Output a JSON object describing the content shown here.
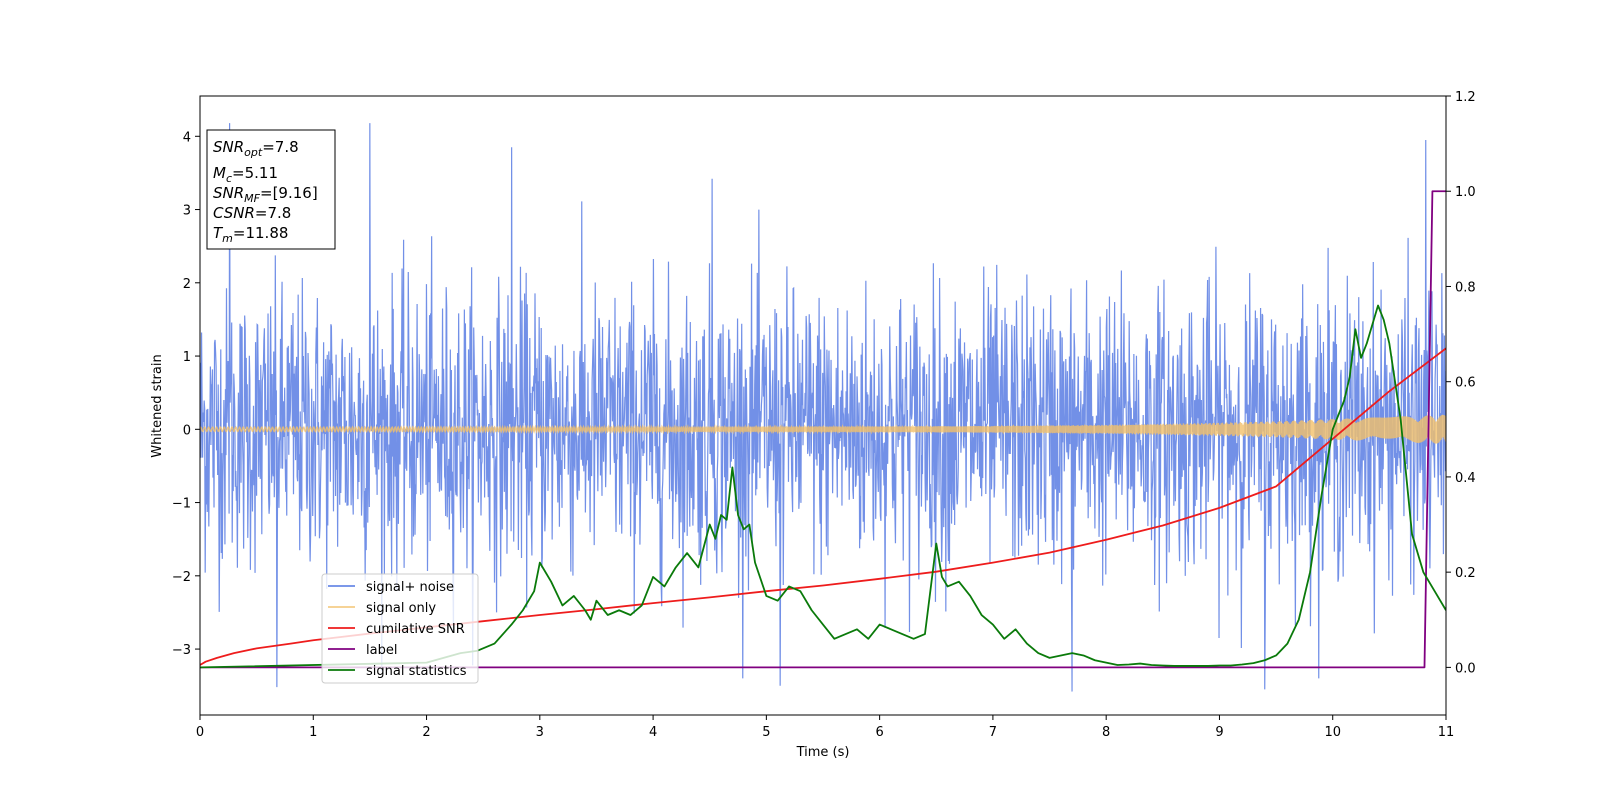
{
  "chart_data": {
    "type": "line",
    "title": "",
    "xlabel": "Time (s)",
    "ylabel": "Whitened strain",
    "xlim": [
      0,
      11
    ],
    "ylim_left": [
      -3.9,
      4.55
    ],
    "ylim_right": [
      -0.1,
      1.2
    ],
    "x_ticks": [
      0,
      1,
      2,
      3,
      4,
      5,
      6,
      7,
      8,
      9,
      10,
      11
    ],
    "y_ticks_left": [
      -3,
      -2,
      -1,
      0,
      1,
      2,
      3,
      4
    ],
    "y_ticks_right": [
      0.0,
      0.2,
      0.4,
      0.6,
      0.8,
      1.0,
      1.2
    ],
    "grid": false,
    "legend_position": "lower-left",
    "info_box": {
      "lines": [
        {
          "base": "SNR",
          "sub": "opt",
          "value": "=7.8"
        },
        {
          "base": "M",
          "sub": "c",
          "value": "=5.11"
        },
        {
          "base": "SNR",
          "sub": "MF",
          "value": "=[9.16]"
        },
        {
          "base": "CSNR",
          "sub": "",
          "value": "=7.8"
        },
        {
          "base": "T",
          "sub": "m",
          "value": "=11.88"
        }
      ]
    },
    "series": [
      {
        "name": "signal+ noise",
        "axis": "left",
        "color": "#6a8ae6",
        "kind": "noise",
        "approx_std": 0.95,
        "approx_range": [
          -3.6,
          4.2
        ],
        "peaks": [
          {
            "x": 0.26,
            "y": 4.18
          },
          {
            "x": 0.68,
            "y": -3.52
          },
          {
            "x": 1.5,
            "y": 4.18
          },
          {
            "x": 2.75,
            "y": 3.85
          },
          {
            "x": 4.52,
            "y": 3.42
          },
          {
            "x": 5.12,
            "y": -3.5
          },
          {
            "x": 7.7,
            "y": -3.58
          },
          {
            "x": 9.4,
            "y": -3.55
          },
          {
            "x": 10.82,
            "y": 3.95
          }
        ]
      },
      {
        "name": "signal only",
        "axis": "left",
        "color": "#f2c06a",
        "kind": "chirp",
        "amplitude_envelope": {
          "x": [
            0,
            2,
            4,
            6,
            7,
            8,
            8.5,
            9,
            9.5,
            10,
            10.5,
            11
          ],
          "y": [
            0.03,
            0.032,
            0.035,
            0.04,
            0.045,
            0.06,
            0.075,
            0.09,
            0.11,
            0.14,
            0.17,
            0.2
          ]
        }
      },
      {
        "name": "cumilative SNR",
        "axis": "right",
        "color": "#ee1c1c",
        "x": [
          0,
          0.05,
          0.15,
          0.3,
          0.5,
          0.8,
          1,
          1.5,
          2,
          2.5,
          3,
          3.5,
          4,
          4.5,
          5,
          5.5,
          6,
          6.5,
          7,
          7.5,
          8,
          8.5,
          9,
          9.5,
          10,
          10.5,
          11
        ],
        "y": [
          0.005,
          0.012,
          0.02,
          0.03,
          0.04,
          0.05,
          0.057,
          0.071,
          0.084,
          0.097,
          0.11,
          0.122,
          0.135,
          0.147,
          0.16,
          0.172,
          0.186,
          0.201,
          0.22,
          0.241,
          0.268,
          0.298,
          0.335,
          0.38,
          0.48,
          0.58,
          0.67
        ]
      },
      {
        "name": "label",
        "axis": "right",
        "color": "#800080",
        "x": [
          0,
          10.81,
          10.88,
          11
        ],
        "y": [
          0.0,
          0.0,
          1.0,
          1.0
        ]
      },
      {
        "name": "signal statistics",
        "axis": "right",
        "color": "#0a7a0a",
        "x": [
          0,
          2.0,
          2.3,
          2.45,
          2.6,
          2.75,
          2.85,
          2.95,
          3.0,
          3.1,
          3.2,
          3.3,
          3.4,
          3.45,
          3.5,
          3.6,
          3.7,
          3.8,
          3.9,
          4.0,
          4.1,
          4.2,
          4.3,
          4.4,
          4.5,
          4.55,
          4.6,
          4.65,
          4.7,
          4.75,
          4.8,
          4.85,
          4.9,
          5.0,
          5.1,
          5.2,
          5.3,
          5.4,
          5.5,
          5.6,
          5.7,
          5.8,
          5.9,
          6.0,
          6.1,
          6.2,
          6.3,
          6.4,
          6.5,
          6.55,
          6.6,
          6.7,
          6.8,
          6.9,
          7.0,
          7.1,
          7.2,
          7.3,
          7.4,
          7.5,
          7.6,
          7.7,
          7.8,
          7.9,
          8.0,
          8.1,
          8.2,
          8.3,
          8.4,
          8.5,
          8.6,
          8.7,
          8.8,
          8.9,
          9.0,
          9.1,
          9.2,
          9.3,
          9.4,
          9.5,
          9.6,
          9.7,
          9.8,
          9.9,
          10.0,
          10.1,
          10.15,
          10.2,
          10.25,
          10.3,
          10.35,
          10.4,
          10.45,
          10.5,
          10.6,
          10.7,
          10.8,
          10.9,
          11.0
        ],
        "y": [
          0.0,
          0.01,
          0.03,
          0.035,
          0.05,
          0.09,
          0.12,
          0.16,
          0.22,
          0.18,
          0.13,
          0.15,
          0.12,
          0.1,
          0.14,
          0.11,
          0.12,
          0.11,
          0.13,
          0.19,
          0.17,
          0.21,
          0.24,
          0.21,
          0.3,
          0.27,
          0.32,
          0.31,
          0.42,
          0.32,
          0.29,
          0.3,
          0.22,
          0.15,
          0.14,
          0.17,
          0.16,
          0.12,
          0.09,
          0.06,
          0.07,
          0.08,
          0.06,
          0.09,
          0.08,
          0.07,
          0.06,
          0.07,
          0.26,
          0.19,
          0.17,
          0.18,
          0.15,
          0.11,
          0.09,
          0.06,
          0.08,
          0.05,
          0.03,
          0.02,
          0.025,
          0.03,
          0.025,
          0.015,
          0.01,
          0.005,
          0.006,
          0.008,
          0.005,
          0.004,
          0.003,
          0.003,
          0.003,
          0.003,
          0.004,
          0.004,
          0.006,
          0.009,
          0.015,
          0.025,
          0.05,
          0.1,
          0.2,
          0.36,
          0.5,
          0.56,
          0.61,
          0.71,
          0.65,
          0.68,
          0.72,
          0.76,
          0.73,
          0.68,
          0.52,
          0.28,
          0.2,
          0.16,
          0.12
        ]
      }
    ]
  }
}
